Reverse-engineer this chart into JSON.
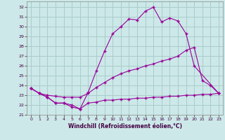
{
  "xlabel": "Windchill (Refroidissement éolien,°C)",
  "bg_color": "#cce8e8",
  "line_color": "#990099",
  "grid_color": "#aacccc",
  "xlim": [
    -0.5,
    23.5
  ],
  "ylim": [
    21.0,
    32.6
  ],
  "yticks": [
    21,
    22,
    23,
    24,
    25,
    26,
    27,
    28,
    29,
    30,
    31,
    32
  ],
  "xticks": [
    0,
    1,
    2,
    3,
    4,
    5,
    6,
    7,
    8,
    9,
    10,
    11,
    12,
    13,
    14,
    15,
    16,
    17,
    18,
    19,
    20,
    21,
    22,
    23
  ],
  "series_top": {
    "x": [
      0,
      1,
      2,
      3,
      4,
      5,
      6,
      7,
      8,
      9,
      10,
      11,
      12,
      13,
      14,
      15,
      16,
      17,
      18,
      19,
      20,
      23
    ],
    "y": [
      23.7,
      23.2,
      22.8,
      22.2,
      22.2,
      22.0,
      21.6,
      23.3,
      25.5,
      27.5,
      29.3,
      30.0,
      30.8,
      30.7,
      31.6,
      32.0,
      30.5,
      30.9,
      30.6,
      29.3,
      26.0,
      23.2
    ]
  },
  "series_mid": {
    "x": [
      0,
      1,
      2,
      3,
      4,
      5,
      6,
      7,
      8,
      9,
      10,
      11,
      12,
      13,
      14,
      15,
      16,
      17,
      18,
      19,
      20,
      21,
      22,
      23
    ],
    "y": [
      23.7,
      23.2,
      23.0,
      22.9,
      22.8,
      22.8,
      22.8,
      23.2,
      23.8,
      24.3,
      24.8,
      25.2,
      25.5,
      25.7,
      26.0,
      26.2,
      26.5,
      26.7,
      27.0,
      27.6,
      27.9,
      24.5,
      24.0,
      23.2
    ]
  },
  "series_bot": {
    "x": [
      0,
      1,
      2,
      3,
      4,
      5,
      6,
      7,
      8,
      9,
      10,
      11,
      12,
      13,
      14,
      15,
      16,
      17,
      18,
      19,
      20,
      21,
      22,
      23
    ],
    "y": [
      23.7,
      23.2,
      22.8,
      22.2,
      22.2,
      21.8,
      21.6,
      22.2,
      22.3,
      22.5,
      22.5,
      22.6,
      22.6,
      22.7,
      22.7,
      22.8,
      22.8,
      22.9,
      22.9,
      23.0,
      23.0,
      23.1,
      23.1,
      23.2
    ]
  }
}
